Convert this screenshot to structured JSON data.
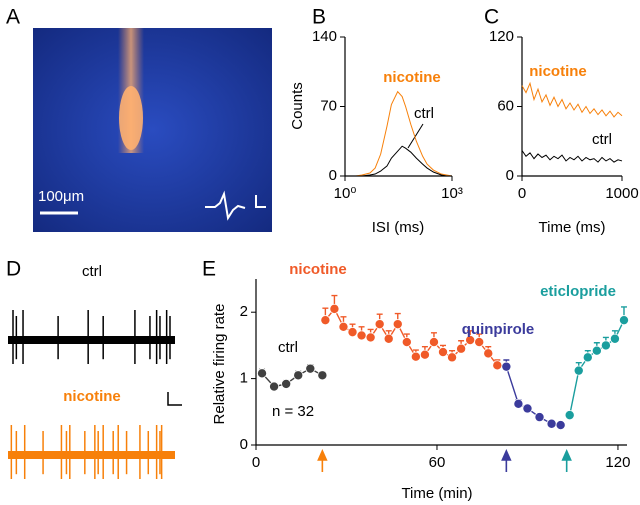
{
  "chart_data": [
    {
      "type": "image",
      "label": "A",
      "scale_label": "100μm"
    },
    {
      "type": "line",
      "label": "B",
      "xlabel": "ISI (ms)",
      "ylabel": "Counts",
      "xscale": "log",
      "xlim": [
        1,
        1000
      ],
      "xticks": [
        {
          "value": 1,
          "label": "10⁰"
        },
        {
          "value": 1000,
          "label": "10³"
        }
      ],
      "ylim": [
        0,
        140
      ],
      "yticks": [
        0,
        70,
        140
      ],
      "x": [
        1,
        2,
        3,
        5,
        7,
        10,
        15,
        20,
        30,
        40,
        50,
        70,
        100,
        150,
        200,
        300,
        500,
        700,
        1000
      ],
      "series": [
        {
          "name": "nicotine",
          "color": "#f7800a",
          "values": [
            0,
            0,
            1,
            3,
            8,
            22,
            50,
            72,
            85,
            80,
            70,
            52,
            35,
            20,
            12,
            6,
            2,
            1,
            0
          ]
        },
        {
          "name": "ctrl",
          "color": "#000000",
          "values": [
            0,
            0,
            0,
            1,
            2,
            5,
            10,
            18,
            25,
            30,
            28,
            24,
            18,
            12,
            8,
            4,
            1,
            0,
            0
          ]
        }
      ]
    },
    {
      "type": "line",
      "label": "C",
      "xlabel": "Time (ms)",
      "xlim": [
        0,
        1000
      ],
      "xticks": [
        0,
        1000
      ],
      "ylim": [
        0,
        120
      ],
      "yticks": [
        0,
        60,
        120
      ],
      "x": [
        0,
        40,
        80,
        120,
        160,
        200,
        240,
        280,
        320,
        360,
        400,
        440,
        480,
        520,
        560,
        600,
        640,
        680,
        720,
        760,
        800,
        840,
        880,
        920,
        960,
        1000
      ],
      "series": [
        {
          "name": "nicotine",
          "color": "#f7800a",
          "values": [
            78,
            72,
            80,
            66,
            75,
            64,
            70,
            61,
            68,
            60,
            66,
            58,
            63,
            57,
            62,
            55,
            60,
            54,
            58,
            53,
            57,
            52,
            56,
            51,
            55,
            52
          ]
        },
        {
          "name": "ctrl",
          "color": "#000000",
          "values": [
            22,
            17,
            20,
            15,
            19,
            16,
            18,
            14,
            17,
            15,
            18,
            13,
            16,
            14,
            17,
            13,
            16,
            14,
            15,
            12,
            16,
            13,
            15,
            12,
            14,
            13
          ]
        }
      ]
    },
    {
      "type": "raster",
      "label": "D",
      "xlim": [
        0,
        100
      ],
      "series": [
        {
          "name": "ctrl",
          "color": "#000000",
          "x": [
            3,
            5,
            9,
            30,
            48,
            57,
            76,
            85,
            89,
            91,
            95,
            97
          ]
        },
        {
          "name": "nicotine",
          "color": "#f7800a",
          "x": [
            2,
            5,
            10,
            21,
            32,
            35,
            37,
            46,
            52,
            54,
            57,
            63,
            66,
            71,
            79,
            84,
            89,
            91,
            92
          ]
        }
      ]
    },
    {
      "type": "line",
      "label": "E",
      "xlabel": "Time (min)",
      "ylabel": "Relative firing rate",
      "n_label": "n = 32",
      "markers": true,
      "xlim": [
        0,
        123
      ],
      "xticks": [
        0,
        60,
        120
      ],
      "ylim": [
        0,
        2.5
      ],
      "yticks": [
        0,
        1,
        2
      ],
      "series": [
        {
          "name": "ctrl",
          "color": "#404040",
          "x": [
            2,
            6,
            10,
            14,
            18,
            22
          ],
          "values": [
            1.08,
            0.88,
            0.92,
            1.05,
            1.15,
            1.05
          ],
          "errors": [
            0.06,
            0.05,
            0.05,
            0.06,
            0.06,
            0.05
          ]
        },
        {
          "name": "nicotine",
          "color": "#f05a28",
          "x": [
            23,
            26,
            29,
            32,
            35,
            38,
            41,
            44,
            47,
            50,
            53,
            56,
            59,
            62,
            65,
            68,
            71,
            74,
            77,
            80
          ],
          "values": [
            1.88,
            2.05,
            1.78,
            1.7,
            1.65,
            1.62,
            1.82,
            1.6,
            1.82,
            1.55,
            1.33,
            1.36,
            1.55,
            1.4,
            1.32,
            1.45,
            1.58,
            1.55,
            1.38,
            1.2
          ],
          "errors": [
            0.18,
            0.2,
            0.15,
            0.12,
            0.13,
            0.12,
            0.15,
            0.12,
            0.16,
            0.12,
            0.1,
            0.12,
            0.14,
            0.1,
            0.1,
            0.12,
            0.14,
            0.12,
            0.1,
            0.08
          ]
        },
        {
          "name": "quinpirole",
          "color": "#3b3b9c",
          "x": [
            83,
            87,
            90,
            94,
            98,
            101
          ],
          "values": [
            1.18,
            0.62,
            0.55,
            0.42,
            0.32,
            0.3
          ],
          "errors": [
            0.1,
            0.06,
            0.05,
            0.04,
            0.03,
            0.03
          ]
        },
        {
          "name": "eticlopride",
          "color": "#1a9e9e",
          "x": [
            104,
            107,
            110,
            113,
            116,
            119,
            122
          ],
          "values": [
            0.45,
            1.12,
            1.32,
            1.42,
            1.5,
            1.6,
            1.88
          ],
          "errors": [
            0.05,
            0.12,
            0.1,
            0.12,
            0.12,
            0.12,
            0.2
          ]
        }
      ],
      "arrows": [
        {
          "x": 22,
          "color": "#f7800a"
        },
        {
          "x": 83,
          "color": "#3b3b9c"
        },
        {
          "x": 103,
          "color": "#1a9e9e"
        }
      ]
    }
  ]
}
